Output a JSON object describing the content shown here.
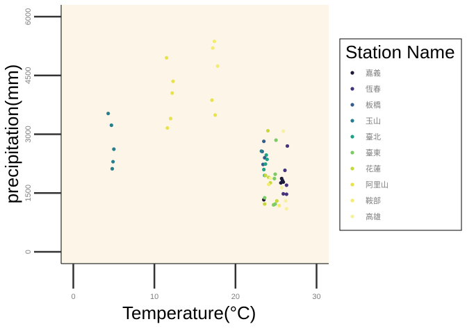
{
  "chart_data": {
    "type": "scatter",
    "xlabel": "Temperature",
    "xlabel_unit": "(°C)",
    "ylabel": "precipitation(mm)",
    "xlim": [
      -1.5,
      31.5
    ],
    "ylim": [
      -300,
      6300
    ],
    "x_ticks": [
      0,
      10,
      20,
      30
    ],
    "y_ticks": [
      0,
      1500,
      3000,
      4500,
      6000
    ],
    "panel_background": "#fdf6e8",
    "grid": false,
    "legend": {
      "title": "Station Name",
      "placement": "right"
    },
    "series": [
      {
        "name": "嘉義",
        "color": "#1b1a3a",
        "points": [
          [
            23.5,
            1330
          ],
          [
            25.9,
            1780
          ],
          [
            25.7,
            1870
          ],
          [
            25.8,
            1820
          ],
          [
            25.6,
            1760
          ]
        ]
      },
      {
        "name": "恆春",
        "color": "#46337e",
        "points": [
          [
            26.4,
            2700
          ],
          [
            26.1,
            2080
          ],
          [
            26.3,
            1700
          ],
          [
            25.9,
            1480
          ],
          [
            26.3,
            1470
          ]
        ]
      },
      {
        "name": "板橋",
        "color": "#365c8d",
        "points": [
          [
            23.5,
            2820
          ],
          [
            23.3,
            2560
          ],
          [
            23.6,
            2400
          ],
          [
            23.4,
            2230
          ]
        ]
      },
      {
        "name": "玉山",
        "color": "#277f8e",
        "points": [
          [
            4.3,
            3530
          ],
          [
            4.7,
            3230
          ],
          [
            5.0,
            2620
          ],
          [
            4.9,
            2300
          ],
          [
            4.8,
            2120
          ],
          [
            23.2,
            2570
          ]
        ]
      },
      {
        "name": "臺北",
        "color": "#1fa187",
        "points": [
          [
            23.8,
            2470
          ],
          [
            23.9,
            2360
          ],
          [
            23.7,
            2240
          ],
          [
            23.5,
            2100
          ],
          [
            23.6,
            1950
          ]
        ]
      },
      {
        "name": "臺東",
        "color": "#7ccb63",
        "points": [
          [
            25.0,
            2850
          ],
          [
            24.9,
            1980
          ],
          [
            24.8,
            1870
          ],
          [
            24.7,
            1200
          ],
          [
            24.9,
            1220
          ],
          [
            23.6,
            1380
          ]
        ]
      },
      {
        "name": "花蓮",
        "color": "#c6d83a",
        "points": [
          [
            24.0,
            3090
          ],
          [
            23.7,
            1950
          ],
          [
            24.1,
            1900
          ],
          [
            23.6,
            1220
          ],
          [
            24.3,
            1760
          ],
          [
            25.1,
            1300
          ]
        ]
      },
      {
        "name": "阿里山",
        "color": "#e8e34a",
        "points": [
          [
            11.5,
            4950
          ],
          [
            12.3,
            4350
          ],
          [
            12.2,
            4050
          ],
          [
            17.1,
            3870
          ],
          [
            12.0,
            3400
          ],
          [
            11.6,
            3160
          ],
          [
            17.5,
            3490
          ]
        ]
      },
      {
        "name": "鞍部",
        "color": "#f2ec70",
        "points": [
          [
            17.4,
            5370
          ],
          [
            17.2,
            5200
          ],
          [
            17.8,
            4740
          ],
          [
            24.1,
            1720
          ],
          [
            25.4,
            1180
          ]
        ]
      },
      {
        "name": "高雄",
        "color": "#f7f0a0",
        "points": [
          [
            25.9,
            3080
          ],
          [
            26.3,
            1100
          ],
          [
            26.2,
            1300
          ],
          [
            25.7,
            1640
          ],
          [
            24.3,
            1880
          ]
        ]
      }
    ]
  }
}
